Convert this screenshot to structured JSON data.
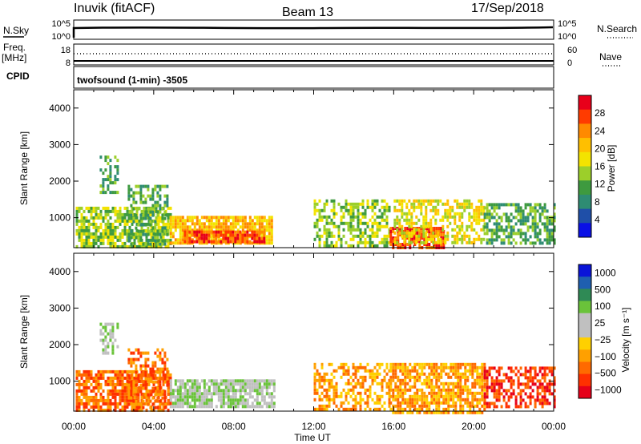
{
  "header": {
    "station": "Inuvik (fitACF)",
    "beam": "Beam 13",
    "date": "17/Sep/2018"
  },
  "param_panels": {
    "nsky_label": "N.Sky",
    "nsearch_label": "N.Search",
    "nsky_ticks": [
      "10^5",
      "10^0"
    ],
    "nsearch_ticks": [
      "10^5",
      "10^0"
    ],
    "freq_label": "Freq.",
    "freq_unit": "[MHz]",
    "freq_ticks": [
      "18",
      "8"
    ],
    "nave_label": "Nave",
    "nave_ticks": [
      "60",
      "0"
    ],
    "cpid_label": "CPID",
    "cpid_text": "twofsound (1-min) -3505"
  },
  "chart_data": [
    {
      "type": "heatmap",
      "name": "power",
      "ylabel": "Slant Range [km]",
      "xlabel": "",
      "x_range_hours": [
        0,
        24
      ],
      "y_range_km": [
        180,
        4500
      ],
      "x_ticks": [
        "00:00",
        "04:00",
        "08:00",
        "12:00",
        "16:00",
        "20:00",
        "00:00"
      ],
      "y_ticks": [
        1000,
        2000,
        3000,
        4000
      ],
      "colorbar": {
        "label": "Power [dB]",
        "ticks": [
          "28",
          "24",
          "20",
          "16",
          "12",
          "8",
          "4"
        ],
        "colors": [
          "#e8001a",
          "#ff3b00",
          "#ff8a00",
          "#ffbf00",
          "#f3e300",
          "#9ccf2a",
          "#3e9a3f",
          "#2e8c73",
          "#1f4fa8",
          "#0a10e6"
        ]
      },
      "regions": [
        {
          "t0": 0.1,
          "t1": 4.9,
          "r0": 180,
          "r1": 1300,
          "level": 5,
          "density": 0.75
        },
        {
          "t0": 2.7,
          "t1": 4.7,
          "r0": 300,
          "r1": 1900,
          "level": 6,
          "density": 0.5
        },
        {
          "t0": 4.8,
          "t1": 9.9,
          "r0": 300,
          "r1": 1050,
          "level": 3,
          "density": 0.8
        },
        {
          "t0": 5.5,
          "t1": 9.5,
          "r0": 300,
          "r1": 650,
          "level": 1,
          "density": 0.9
        },
        {
          "t0": 1.3,
          "t1": 2.2,
          "r0": 1700,
          "r1": 2700,
          "level": 6,
          "density": 0.5
        },
        {
          "t0": 12.0,
          "t1": 15.8,
          "r0": 250,
          "r1": 1500,
          "level": 5,
          "density": 0.55
        },
        {
          "t0": 15.8,
          "t1": 18.5,
          "r0": 180,
          "r1": 750,
          "level": 1,
          "density": 0.85
        },
        {
          "t0": 16.0,
          "t1": 20.5,
          "r0": 300,
          "r1": 1500,
          "level": 4,
          "density": 0.55
        },
        {
          "t0": 20.5,
          "t1": 24.0,
          "r0": 300,
          "r1": 1400,
          "level": 6,
          "density": 0.6
        }
      ]
    },
    {
      "type": "heatmap",
      "name": "velocity",
      "ylabel": "Slant Range [km]",
      "xlabel": "Time UT",
      "x_range_hours": [
        0,
        24
      ],
      "y_range_km": [
        180,
        4500
      ],
      "x_ticks": [
        "00:00",
        "04:00",
        "08:00",
        "12:00",
        "16:00",
        "20:00",
        "00:00"
      ],
      "y_ticks": [
        1000,
        2000,
        3000,
        4000
      ],
      "colorbar": {
        "label": "Velocity [m s⁻¹]",
        "ticks": [
          "1000",
          "500",
          "100",
          "25",
          "−25",
          "−100",
          "−500",
          "−1000"
        ],
        "colors": [
          "#0a14d8",
          "#1f5fb0",
          "#2f8a55",
          "#6ac33a",
          "#c0c0c0",
          "#c0c0c0",
          "#ffd000",
          "#ffa000",
          "#ff6a00",
          "#ff3000",
          "#e6001a"
        ]
      },
      "regions": [
        {
          "t0": 0.1,
          "t1": 4.9,
          "r0": 180,
          "r1": 1300,
          "level": 8,
          "density": 0.75
        },
        {
          "t0": 2.7,
          "t1": 4.7,
          "r0": 300,
          "r1": 1900,
          "level": 8,
          "density": 0.5
        },
        {
          "t0": 4.8,
          "t1": 10.0,
          "r0": 300,
          "r1": 1050,
          "level": 4,
          "density": 0.8
        },
        {
          "t0": 1.3,
          "t1": 2.2,
          "r0": 1800,
          "r1": 2600,
          "level": 4,
          "density": 0.5
        },
        {
          "t0": 12.0,
          "t1": 15.8,
          "r0": 250,
          "r1": 1500,
          "level": 7,
          "density": 0.55
        },
        {
          "t0": 15.8,
          "t1": 20.5,
          "r0": 180,
          "r1": 1500,
          "level": 7,
          "density": 0.75
        },
        {
          "t0": 20.5,
          "t1": 24.0,
          "r0": 300,
          "r1": 1400,
          "level": 9,
          "density": 0.6
        }
      ]
    }
  ],
  "colors": {
    "axis": "#000000",
    "background": "#ffffff"
  }
}
